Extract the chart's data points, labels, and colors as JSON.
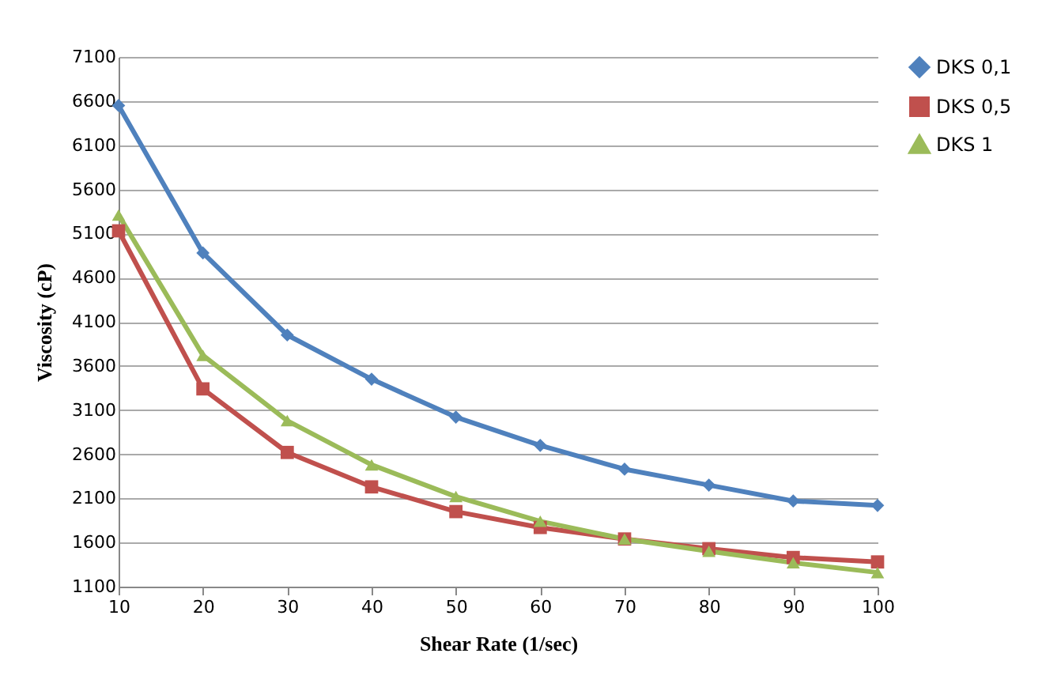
{
  "chart_data": {
    "type": "line",
    "xlabel": "Shear Rate (1/sec)",
    "ylabel": "Viscosity (cP)",
    "x": [
      10,
      20,
      30,
      40,
      50,
      60,
      70,
      80,
      90,
      100
    ],
    "xlim": [
      10,
      100
    ],
    "xticks": [
      10,
      20,
      30,
      40,
      50,
      60,
      70,
      80,
      90,
      100
    ],
    "ylim": [
      1100,
      7100
    ],
    "yticks": [
      1100,
      1600,
      2100,
      2600,
      3100,
      3600,
      4100,
      4600,
      5100,
      5600,
      6100,
      6600,
      7100
    ],
    "grid": "y",
    "legend": "right",
    "line_style": "solid",
    "series": [
      {
        "name": "DKS 0,1",
        "color": "#4f81bd",
        "marker": "diamond",
        "values": [
          6550,
          4880,
          3950,
          3450,
          3020,
          2700,
          2430,
          2250,
          2070,
          2020
        ]
      },
      {
        "name": "DKS 0,5",
        "color": "#c0504d",
        "marker": "square",
        "values": [
          5130,
          3340,
          2620,
          2230,
          1950,
          1770,
          1640,
          1530,
          1430,
          1380
        ]
      },
      {
        "name": "DKS 1",
        "color": "#9bbb59",
        "marker": "triangle",
        "values": [
          5310,
          3720,
          2980,
          2480,
          2120,
          1840,
          1640,
          1500,
          1370,
          1260
        ]
      }
    ]
  }
}
